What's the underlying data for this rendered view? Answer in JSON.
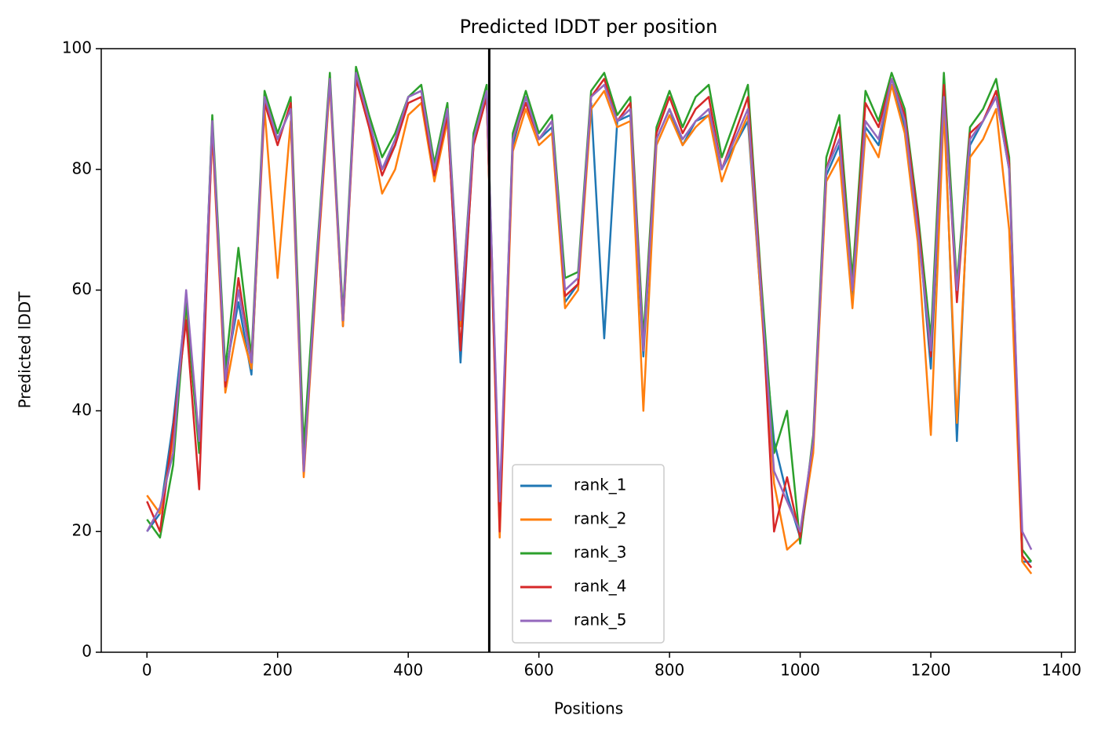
{
  "chart_data": {
    "type": "line",
    "title": "Predicted lDDT per position",
    "xlabel": "Positions",
    "ylabel": "Predicted lDDT",
    "x": [
      0,
      20,
      40,
      60,
      80,
      100,
      120,
      140,
      160,
      180,
      200,
      220,
      240,
      260,
      280,
      300,
      320,
      340,
      360,
      380,
      400,
      420,
      440,
      460,
      480,
      500,
      520,
      540,
      560,
      580,
      600,
      620,
      640,
      660,
      680,
      700,
      720,
      740,
      760,
      780,
      800,
      820,
      840,
      860,
      880,
      900,
      920,
      940,
      960,
      980,
      1000,
      1020,
      1040,
      1060,
      1080,
      1100,
      1120,
      1140,
      1160,
      1180,
      1200,
      1220,
      1240,
      1260,
      1280,
      1300,
      1320,
      1340,
      1354
    ],
    "series": [
      {
        "name": "rank_1",
        "color": "#1f77b4",
        "values": [
          20,
          23,
          38,
          58,
          34,
          88,
          46,
          58,
          46,
          92,
          85,
          90,
          31,
          64,
          95,
          54,
          96,
          88,
          80,
          84,
          92,
          93,
          80,
          90,
          48,
          85,
          92,
          21,
          84,
          92,
          85,
          87,
          58,
          61,
          91,
          52,
          88,
          89,
          49,
          85,
          90,
          84,
          88,
          89,
          80,
          84,
          88,
          58,
          35,
          26,
          19,
          34,
          79,
          84,
          58,
          87,
          84,
          94,
          87,
          72,
          47,
          92,
          35,
          84,
          88,
          92,
          80,
          15,
          15
        ]
      },
      {
        "name": "rank_2",
        "color": "#ff7f0e",
        "values": [
          26,
          23,
          35,
          57,
          34,
          86,
          43,
          55,
          47,
          90,
          62,
          88,
          29,
          63,
          94,
          54,
          95,
          87,
          76,
          80,
          89,
          91,
          78,
          88,
          54,
          84,
          92,
          19,
          83,
          90,
          84,
          86,
          57,
          60,
          90,
          93,
          87,
          88,
          40,
          84,
          89,
          84,
          87,
          89,
          78,
          84,
          89,
          58,
          28,
          17,
          19,
          33,
          78,
          82,
          57,
          86,
          82,
          94,
          86,
          68,
          36,
          90,
          38,
          82,
          85,
          90,
          70,
          15,
          13
        ]
      },
      {
        "name": "rank_3",
        "color": "#2ca02c",
        "values": [
          22,
          19,
          31,
          58,
          33,
          89,
          47,
          67,
          49,
          93,
          86,
          92,
          34,
          66,
          96,
          56,
          97,
          89,
          82,
          86,
          92,
          94,
          81,
          91,
          55,
          86,
          94,
          23,
          86,
          93,
          86,
          89,
          62,
          63,
          93,
          96,
          89,
          92,
          52,
          87,
          93,
          87,
          92,
          94,
          82,
          88,
          94,
          62,
          33,
          40,
          18,
          36,
          82,
          89,
          62,
          93,
          88,
          96,
          90,
          73,
          52,
          96,
          61,
          87,
          90,
          95,
          82,
          17,
          15
        ]
      },
      {
        "name": "rank_4",
        "color": "#d62728",
        "values": [
          25,
          20,
          37,
          55,
          27,
          87,
          44,
          62,
          48,
          91,
          84,
          91,
          30,
          64,
          95,
          55,
          95,
          87,
          79,
          84,
          91,
          92,
          79,
          89,
          50,
          84,
          92,
          20,
          85,
          91,
          85,
          88,
          59,
          61,
          92,
          95,
          88,
          91,
          50,
          86,
          92,
          86,
          90,
          92,
          80,
          86,
          92,
          61,
          20,
          29,
          19,
          35,
          80,
          87,
          60,
          91,
          87,
          95,
          89,
          72,
          49,
          94,
          58,
          86,
          88,
          93,
          81,
          16,
          14
        ]
      },
      {
        "name": "rank_5",
        "color": "#9467bd",
        "values": [
          20,
          24,
          33,
          60,
          35,
          88,
          45,
          60,
          48,
          92,
          85,
          90,
          30,
          65,
          95,
          55,
          96,
          88,
          80,
          85,
          92,
          93,
          80,
          90,
          55,
          85,
          93,
          25,
          85,
          92,
          85,
          88,
          60,
          62,
          92,
          94,
          88,
          90,
          50,
          85,
          90,
          85,
          88,
          90,
          80,
          85,
          90,
          60,
          30,
          25,
          20,
          35,
          80,
          85,
          60,
          88,
          85,
          95,
          88,
          70,
          50,
          92,
          60,
          85,
          88,
          92,
          80,
          20,
          17
        ]
      }
    ],
    "vline": 524,
    "xlim": [
      -70,
      1421
    ],
    "xticks": [
      0,
      200,
      400,
      600,
      800,
      1000,
      1200,
      1400
    ],
    "ylim": [
      0,
      100
    ],
    "yticks": [
      0,
      20,
      40,
      60,
      80,
      100
    ],
    "legend": "lower center",
    "grid": false
  }
}
